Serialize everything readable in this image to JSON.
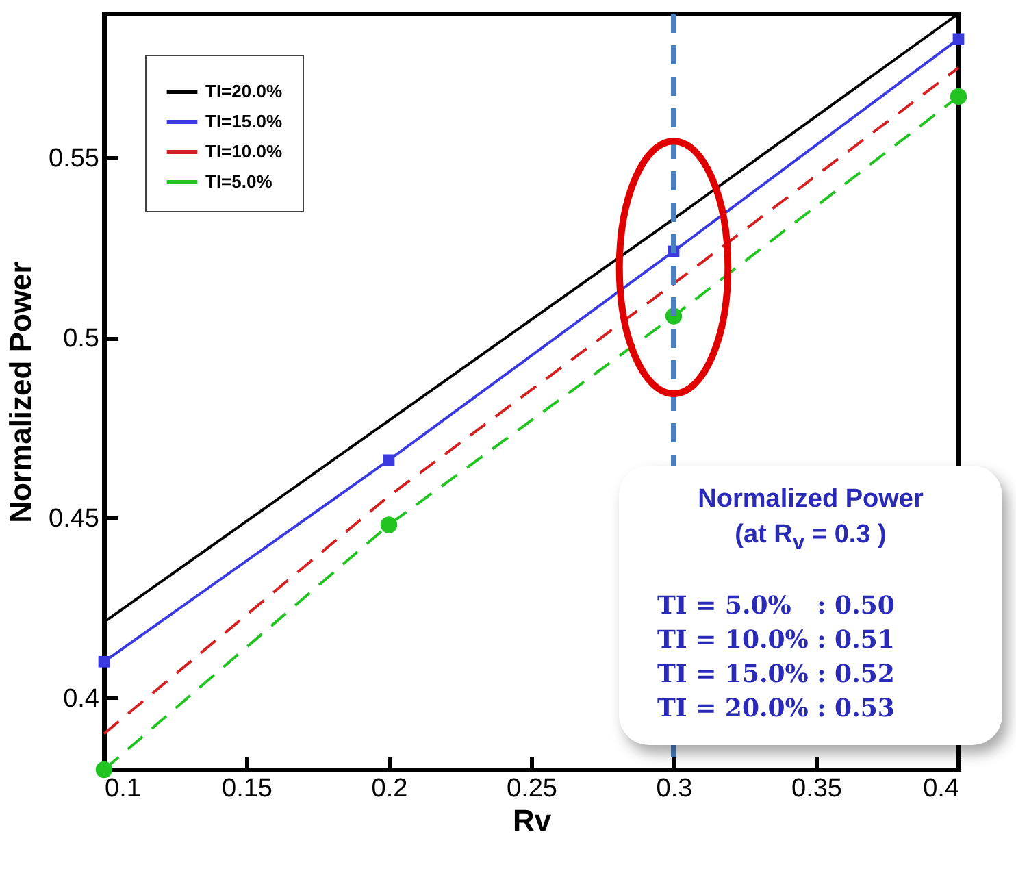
{
  "chart_data": {
    "type": "line",
    "xlabel": "Rv",
    "ylabel": "Normalized Power",
    "x": [
      0.1,
      0.2,
      0.3,
      0.4
    ],
    "series": [
      {
        "name": "TI=20.0%",
        "color": "#000000",
        "values": [
          0.421,
          0.477,
          0.533,
          0.59
        ],
        "marker": "none",
        "line_style": "solid"
      },
      {
        "name": "TI=15.0%",
        "color": "#3a3ae0",
        "values": [
          0.41,
          0.466,
          0.524,
          0.583
        ],
        "marker": "square",
        "line_style": "solid"
      },
      {
        "name": "TI=10.0%",
        "color": "#d42020",
        "values": [
          0.39,
          0.456,
          0.515,
          0.575
        ],
        "marker": "none",
        "line_style": "dashed"
      },
      {
        "name": "TI=5.0%",
        "color": "#22c422",
        "values": [
          0.38,
          0.448,
          0.506,
          0.567
        ],
        "marker": "circle",
        "line_style": "dashed"
      }
    ],
    "xlim": [
      0.1,
      0.4
    ],
    "xticks": [
      {
        "value": 0.1,
        "label": "0.1"
      },
      0.15,
      {
        "value": 0.2,
        "label": "0.2"
      },
      0.25,
      {
        "value": 0.3,
        "label": "0.3"
      },
      0.35,
      {
        "value": 0.4,
        "label": "0.4"
      }
    ],
    "ylim": [
      0.38,
      0.59
    ],
    "yticks": [
      {
        "value": 0.4,
        "label": "0.4"
      },
      0.45,
      {
        "value": 0.5,
        "label": "0.5"
      },
      0.55
    ],
    "ref_lines": [
      {
        "axis": "x",
        "value": 0.3,
        "color": "#4a7fc0",
        "line_style": "dashed"
      }
    ],
    "annotations": [
      "Normalized Power",
      "(at R$_{v}$ = 0.3 )",
      "TI = 5.0%   : 0.50",
      "TI = 10.0% : 0.51",
      "TI = 15.0% : 0.52",
      "TI = 20.0% : 0.53"
    ],
    "legend": "top left",
    "grid": false
  }
}
